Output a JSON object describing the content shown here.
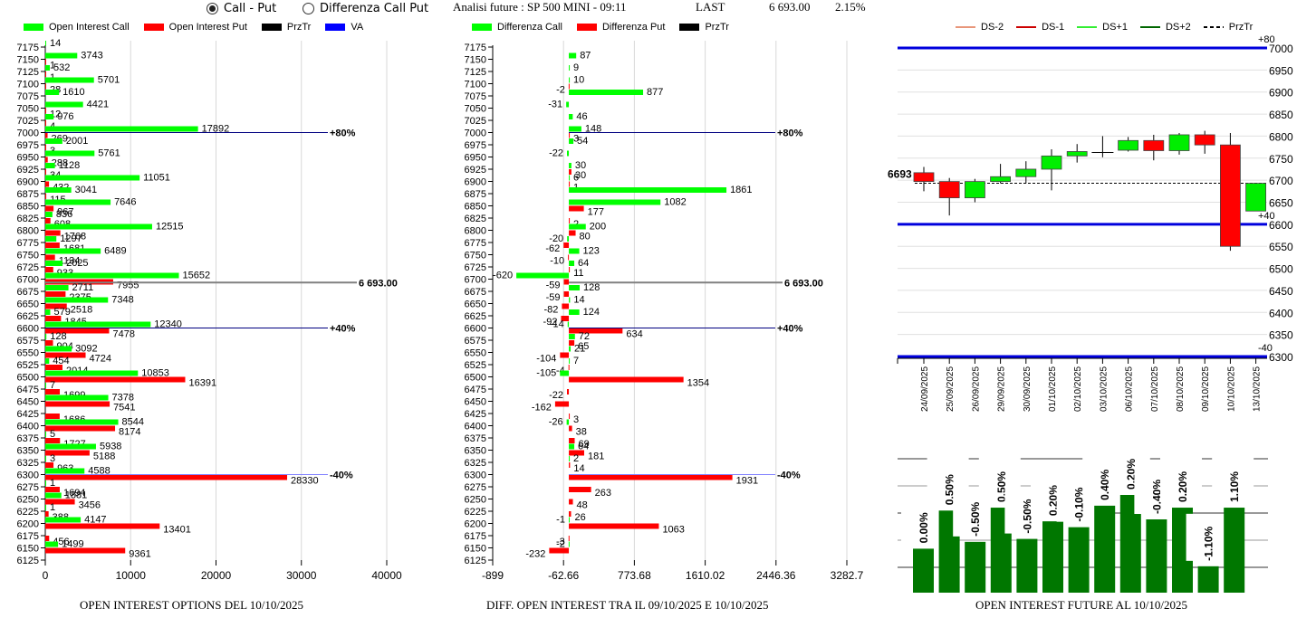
{
  "header": {
    "radio_options": [
      {
        "label": "Call - Put",
        "selected": true
      },
      {
        "label": "Differenza Call Put",
        "selected": false
      }
    ],
    "title": "Analisi future : SP 500 MINI - 09:11",
    "last_label": "LAST",
    "last_value": "6 693.00",
    "change": "2.15%"
  },
  "legends": {
    "left": [
      {
        "label": "Open Interest Call",
        "color": "#00ff00"
      },
      {
        "label": "Open Interest Put",
        "color": "#ff0000"
      },
      {
        "label": "PrzTr",
        "color": "#000000"
      },
      {
        "label": "VA",
        "color": "#0000ff"
      }
    ],
    "middle": [
      {
        "label": "Differenza Call",
        "color": "#00ff00"
      },
      {
        "label": "Differenza Put",
        "color": "#ff0000"
      },
      {
        "label": "PrzTr",
        "color": "#000000"
      }
    ],
    "right": [
      {
        "label": "DS-2",
        "color": "#e8967a",
        "style": "solid"
      },
      {
        "label": "DS-1",
        "color": "#cc0000",
        "style": "solid"
      },
      {
        "label": "DS+1",
        "color": "#33ee33",
        "style": "solid"
      },
      {
        "label": "DS+2",
        "color": "#006600",
        "style": "solid"
      },
      {
        "label": "PrzTr",
        "color": "#000000",
        "style": "dashed"
      }
    ]
  },
  "chart_data": [
    {
      "id": "oi-options",
      "type": "bar",
      "orientation": "horizontal",
      "title": "OPEN INTEREST OPTIONS DEL 10/10/2025",
      "categories": [
        "7175",
        "7150",
        "7125",
        "7100",
        "7075",
        "7050",
        "7025",
        "7000",
        "6975",
        "6950",
        "6925",
        "6900",
        "6875",
        "6850",
        "6825",
        "6800",
        "6775",
        "6750",
        "6725",
        "6700",
        "6675",
        "6650",
        "6625",
        "6600",
        "6575",
        "6550",
        "6525",
        "6500",
        "6475",
        "6450",
        "6425",
        "6400",
        "6375",
        "6350",
        "6325",
        "6300",
        "6275",
        "6250",
        "6225",
        "6200",
        "6175",
        "6150",
        "6125"
      ],
      "series": [
        {
          "name": "Open Interest Call",
          "color": "#00ff00",
          "values": [
            14,
            3743,
            532,
            5701,
            1610,
            4421,
            976,
            17892,
            2001,
            5761,
            1128,
            11051,
            3041,
            7646,
            836,
            12515,
            1297,
            6489,
            2025,
            15652,
            2711,
            7348,
            579,
            12340,
            128,
            3092,
            454,
            10853,
            7,
            7378,
            0,
            8544,
            5,
            5938,
            3,
            4588,
            1,
            1881,
            1,
            4147,
            0,
            1499,
            0
          ]
        },
        {
          "name": "Open Interest Put",
          "color": "#ff0000",
          "values": [
            0,
            1,
            1,
            28,
            0,
            12,
            4,
            269,
            3,
            288,
            34,
            432,
            115,
            967,
            608,
            1768,
            1681,
            1134,
            933,
            7955,
            2375,
            2518,
            1845,
            7478,
            904,
            4724,
            2014,
            16391,
            1699,
            7541,
            1686,
            8174,
            1727,
            5188,
            963,
            28330,
            1694,
            3456,
            388,
            13401,
            456,
            9361,
            0
          ]
        }
      ],
      "reference_lines": [
        {
          "strike": "7000",
          "label": "+80%",
          "color": "#000080"
        },
        {
          "strike": "6693",
          "label": "6 693.00",
          "color": "#808080"
        },
        {
          "strike": "6600",
          "label": "+40%",
          "color": "#000080"
        },
        {
          "strike": "6300",
          "label": "-40%",
          "color": "#8080ff"
        }
      ],
      "xticks": [
        "0",
        "10000",
        "20000",
        "30000",
        "40000"
      ],
      "xlim": [
        0,
        40000
      ],
      "grid": true
    },
    {
      "id": "diff-oi",
      "type": "bar",
      "orientation": "horizontal",
      "title": "DIFF. OPEN INTEREST TRA IL 09/10/2025 E 10/10/2025",
      "categories": [
        "7175",
        "7150",
        "7125",
        "7100",
        "7075",
        "7050",
        "7025",
        "7000",
        "6975",
        "6950",
        "6925",
        "6900",
        "6875",
        "6850",
        "6825",
        "6800",
        "6775",
        "6750",
        "6725",
        "6700",
        "6675",
        "6650",
        "6625",
        "6600",
        "6575",
        "6550",
        "6525",
        "6500",
        "6475",
        "6450",
        "6425",
        "6400",
        "6375",
        "6350",
        "6325",
        "6300",
        "6275",
        "6250",
        "6225",
        "6200",
        "6175",
        "6150",
        "6125"
      ],
      "series": [
        {
          "name": "Differenza Call",
          "color": "#00ff00",
          "values": [
            0,
            87,
            9,
            10,
            877,
            -31,
            46,
            148,
            54,
            -22,
            30,
            6,
            1861,
            1082,
            0,
            200,
            -20,
            123,
            64,
            -620,
            128,
            14,
            124,
            -14,
            72,
            21,
            7,
            -105,
            0,
            0,
            0,
            -26,
            0,
            64,
            2,
            0,
            0,
            0,
            0,
            -1,
            0,
            -2,
            0
          ]
        },
        {
          "name": "Differenza Put",
          "color": "#ff0000",
          "values": [
            0,
            0,
            0,
            -2,
            0,
            0,
            0,
            3,
            0,
            0,
            30,
            1,
            0,
            177,
            2,
            80,
            -62,
            -10,
            11,
            -59,
            -59,
            -82,
            -92,
            634,
            65,
            -104,
            -4,
            1354,
            -22,
            -162,
            3,
            38,
            69,
            181,
            14,
            1931,
            263,
            48,
            26,
            1063,
            -3,
            -232,
            0
          ]
        }
      ],
      "reference_lines": [
        {
          "strike": "7000",
          "label": "+80%",
          "color": "#000080"
        },
        {
          "strike": "6693",
          "label": "6 693.00",
          "color": "#808080"
        },
        {
          "strike": "6600",
          "label": "+40%",
          "color": "#000080"
        },
        {
          "strike": "6300",
          "label": "-40%",
          "color": "#8080ff"
        }
      ],
      "xticks": [
        "-899",
        "-62.66",
        "773.68",
        "1610.02",
        "2446.36",
        "3282.7"
      ],
      "xlim": [
        -899,
        3282.7
      ],
      "grid": true
    },
    {
      "id": "future-candles",
      "type": "candlestick",
      "dates": [
        "24/09/2025",
        "25/09/2025",
        "26/09/2025",
        "29/09/2025",
        "30/09/2025",
        "01/10/2025",
        "02/10/2025",
        "03/10/2025",
        "06/10/2025",
        "07/10/2025",
        "08/10/2025",
        "09/10/2025",
        "10/10/2025",
        "13/10/2025"
      ],
      "candles": [
        {
          "open": 6717,
          "high": 6730,
          "low": 6675,
          "close": 6697
        },
        {
          "open": 6697,
          "high": 6705,
          "low": 6620,
          "close": 6660
        },
        {
          "open": 6660,
          "high": 6703,
          "low": 6650,
          "close": 6697
        },
        {
          "open": 6697,
          "high": 6737,
          "low": 6693,
          "close": 6708
        },
        {
          "open": 6708,
          "high": 6743,
          "low": 6693,
          "close": 6725
        },
        {
          "open": 6725,
          "high": 6770,
          "low": 6677,
          "close": 6755
        },
        {
          "open": 6755,
          "high": 6782,
          "low": 6740,
          "close": 6765
        },
        {
          "open": 6763,
          "high": 6800,
          "low": 6752,
          "close": 6763
        },
        {
          "open": 6768,
          "high": 6798,
          "low": 6765,
          "close": 6790
        },
        {
          "open": 6790,
          "high": 6803,
          "low": 6745,
          "close": 6767
        },
        {
          "open": 6767,
          "high": 6807,
          "low": 6758,
          "close": 6803
        },
        {
          "open": 6803,
          "high": 6812,
          "low": 6760,
          "close": 6780
        },
        {
          "open": 6780,
          "high": 6807,
          "low": 6540,
          "close": 6550
        },
        {
          "open": 6630,
          "high": 6693,
          "low": 6630,
          "close": 6693
        }
      ],
      "yticks": [
        "7000",
        "6950",
        "6900",
        "6850",
        "6800",
        "6750",
        "6700",
        "6650",
        "6600",
        "6550",
        "6500",
        "6450",
        "6400",
        "6350",
        "6300"
      ],
      "ylim": [
        6300,
        7000
      ],
      "price_line": {
        "value": 6693,
        "label": "6693"
      },
      "band_lines": [
        {
          "value": 7000,
          "label": "+80"
        },
        {
          "value": 6600,
          "label": "+40"
        },
        {
          "value": 6300,
          "label": "-40"
        }
      ]
    },
    {
      "id": "oi-future",
      "type": "bar",
      "title": "OPEN INTEREST FUTURE AL 10/10/2025",
      "categories": [
        "24/09/2025",
        "25/09/2025",
        "26/09/2025",
        "29/09/2025",
        "30/09/2025",
        "01/10/2025",
        "02/10/2025",
        "03/10/2025",
        "06/10/2025",
        "07/10/2025",
        "08/10/2025",
        "09/10/2025",
        "10/10/2025"
      ],
      "labels": [
        "0.00%",
        "0.50%",
        "-0.50%",
        "0.50%",
        "-0.50%",
        "0.20%",
        "-0.10%",
        "0.40%",
        "0.20%",
        "-0.40%",
        "0.20%",
        "-1.10%",
        "1.10%"
      ],
      "relative_heights": [
        0.45,
        0.84,
        0.52,
        0.87,
        0.55,
        0.73,
        0.67,
        0.89,
        1.0,
        0.75,
        0.87,
        0.27,
        0.87
      ],
      "color": "#007700"
    }
  ]
}
